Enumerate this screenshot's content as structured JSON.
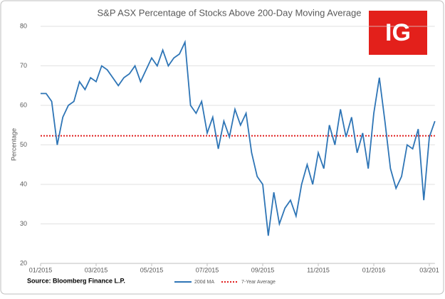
{
  "chart_data": {
    "type": "line",
    "title": "S&P ASX  Percentage of Stocks Above 200-Day Moving Average",
    "ylabel": "Percentage",
    "x": [
      0,
      0.2,
      0.4,
      0.6,
      0.8,
      1,
      1.2,
      1.4,
      1.6,
      1.8,
      2,
      2.2,
      2.4,
      2.6,
      2.8,
      3,
      3.2,
      3.4,
      3.6,
      3.8,
      4,
      4.2,
      4.4,
      4.6,
      4.8,
      5,
      5.2,
      5.4,
      5.6,
      5.8,
      6,
      6.2,
      6.4,
      6.6,
      6.8,
      7,
      7.2,
      7.4,
      7.6,
      7.8,
      8,
      8.2,
      8.4,
      8.6,
      8.8,
      9,
      9.2,
      9.4,
      9.6,
      9.8,
      10,
      10.2,
      10.4,
      10.6,
      10.8,
      11,
      11.2,
      11.4,
      11.6,
      11.8,
      12,
      12.2,
      12.4,
      12.6,
      12.8,
      13,
      13.2,
      13.4,
      13.6,
      13.8,
      14,
      14.2
    ],
    "series": [
      {
        "name": "200d MA",
        "color": "#2e75b6",
        "values": [
          63,
          63,
          61,
          50,
          57,
          60,
          61,
          66,
          64,
          67,
          66,
          70,
          69,
          67,
          65,
          67,
          68,
          70,
          66,
          69,
          72,
          70,
          74,
          70,
          72,
          73,
          76,
          60,
          58,
          61,
          53,
          57,
          49,
          56,
          52,
          59,
          55,
          58,
          48,
          42,
          40,
          27,
          38,
          30,
          34,
          36,
          32,
          40,
          45,
          40,
          48,
          44,
          55,
          50,
          59,
          52,
          57,
          48,
          53,
          44,
          58,
          67,
          56,
          44,
          39,
          42,
          50,
          49,
          54,
          36,
          52,
          56
        ]
      }
    ],
    "reference_line": {
      "name": "7-Year Average",
      "value": 52.3,
      "color": "#e02020"
    },
    "xlim": [
      0,
      14.2
    ],
    "xticks": [
      {
        "value": 0,
        "label": "01/2015"
      },
      {
        "value": 2,
        "label": "03/2015"
      },
      {
        "value": 4,
        "label": "05/2015"
      },
      {
        "value": 6,
        "label": "07/2015"
      },
      {
        "value": 8,
        "label": "09/2015"
      },
      {
        "value": 10,
        "label": "11/2015"
      },
      {
        "value": 12,
        "label": "01/2016"
      },
      {
        "value": 14,
        "label": "03/201"
      }
    ],
    "ylim": [
      20,
      80
    ],
    "yticks": [
      20,
      30,
      40,
      50,
      60,
      70,
      80
    ],
    "grid": true
  },
  "logo": "IG",
  "source": "Source: Bloomberg Finance L.P."
}
